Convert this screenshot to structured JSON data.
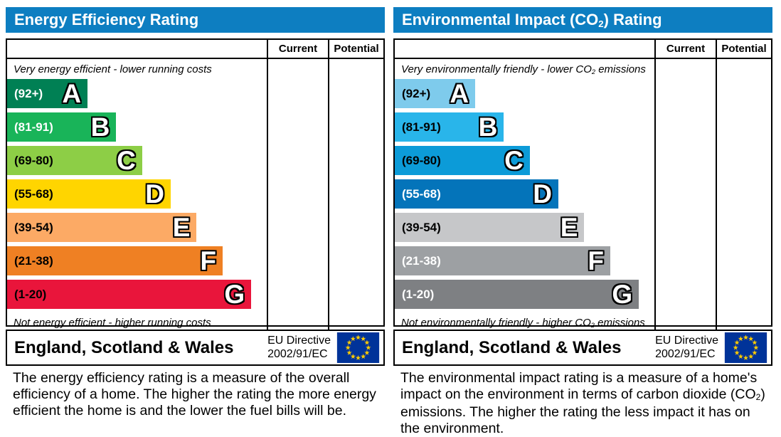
{
  "colors": {
    "header_blue": "#0d7ec1",
    "border": "#000000",
    "flag_blue": "#003399",
    "flag_star": "#ffcc00"
  },
  "left_chart": {
    "title": "Energy Efficiency Rating",
    "columns": {
      "current": "Current",
      "potential": "Potential"
    },
    "top_caption": "Very energy efficient - lower running costs",
    "bottom_caption": "Not energy efficient - higher running costs",
    "bands": [
      {
        "range": "(92+)",
        "letter": "A",
        "color": "#008054",
        "width_pct": 31,
        "label_color": "#ffffff"
      },
      {
        "range": "(81-91)",
        "letter": "B",
        "color": "#19b459",
        "width_pct": 42,
        "label_color": "#ffffff"
      },
      {
        "range": "(69-80)",
        "letter": "C",
        "color": "#8dce46",
        "width_pct": 52,
        "label_color": "#000000"
      },
      {
        "range": "(55-68)",
        "letter": "D",
        "color": "#ffd500",
        "width_pct": 63,
        "label_color": "#000000"
      },
      {
        "range": "(39-54)",
        "letter": "E",
        "color": "#fcaa65",
        "width_pct": 73,
        "label_color": "#000000"
      },
      {
        "range": "(21-38)",
        "letter": "F",
        "color": "#ef8023",
        "width_pct": 83,
        "label_color": "#000000"
      },
      {
        "range": "(1-20)",
        "letter": "G",
        "color": "#e9153b",
        "width_pct": 94,
        "label_color": "#000000"
      }
    ],
    "footer": {
      "region": "England, Scotland & Wales",
      "directive_line1": "EU Directive",
      "directive_line2": "2002/91/EC"
    },
    "description": "The energy efficiency rating is a measure of the overall efficiency of a home. The higher the rating the more energy efficient the home is and the lower the fuel bills will be."
  },
  "right_chart": {
    "title_prefix": "Environmental Impact (CO",
    "title_sub": "2",
    "title_suffix": ") Rating",
    "columns": {
      "current": "Current",
      "potential": "Potential"
    },
    "top_caption_prefix": "Very environmentally friendly - lower CO",
    "top_caption_sub": "2",
    "top_caption_suffix": " emissions",
    "bottom_caption_prefix": "Not environmentally friendly - higher CO",
    "bottom_caption_sub": "2",
    "bottom_caption_suffix": " emissions",
    "bands": [
      {
        "range": "(92+)",
        "letter": "A",
        "color": "#7ecbec",
        "width_pct": 31,
        "label_color": "#000000"
      },
      {
        "range": "(81-91)",
        "letter": "B",
        "color": "#29b5ea",
        "width_pct": 42,
        "label_color": "#000000"
      },
      {
        "range": "(69-80)",
        "letter": "C",
        "color": "#0c9bd8",
        "width_pct": 52,
        "label_color": "#000000"
      },
      {
        "range": "(55-68)",
        "letter": "D",
        "color": "#0474ba",
        "width_pct": 63,
        "label_color": "#ffffff"
      },
      {
        "range": "(39-54)",
        "letter": "E",
        "color": "#c6c7c9",
        "width_pct": 73,
        "label_color": "#000000"
      },
      {
        "range": "(21-38)",
        "letter": "F",
        "color": "#9da0a3",
        "width_pct": 83,
        "label_color": "#ffffff"
      },
      {
        "range": "(1-20)",
        "letter": "G",
        "color": "#7e8083",
        "width_pct": 94,
        "label_color": "#ffffff"
      }
    ],
    "footer": {
      "region": "England, Scotland & Wales",
      "directive_line1": "EU Directive",
      "directive_line2": "2002/91/EC"
    },
    "description_prefix": "The environmental impact rating is a measure of a home's impact on the environment in terms of carbon dioxide (CO",
    "description_sub": "2",
    "description_suffix": ") emissions. The higher the rating the less impact it has on the environment."
  },
  "chart_data": [
    {
      "type": "bar",
      "orientation": "horizontal",
      "title": "Energy Efficiency Rating",
      "categories": [
        "A",
        "B",
        "C",
        "D",
        "E",
        "F",
        "G"
      ],
      "band_ranges": [
        "92+",
        "81-91",
        "69-80",
        "55-68",
        "39-54",
        "21-38",
        "1-20"
      ],
      "relative_widths_pct": [
        31,
        42,
        52,
        63,
        73,
        83,
        94
      ],
      "colors": [
        "#008054",
        "#19b459",
        "#8dce46",
        "#ffd500",
        "#fcaa65",
        "#ef8023",
        "#e9153b"
      ],
      "value_columns": [
        "Current",
        "Potential"
      ],
      "current_value": null,
      "potential_value": null,
      "top_annotation": "Very energy efficient - lower running costs",
      "bottom_annotation": "Not energy efficient - higher running costs",
      "footer": "England, Scotland & Wales — EU Directive 2002/91/EC"
    },
    {
      "type": "bar",
      "orientation": "horizontal",
      "title": "Environmental Impact (CO2) Rating",
      "categories": [
        "A",
        "B",
        "C",
        "D",
        "E",
        "F",
        "G"
      ],
      "band_ranges": [
        "92+",
        "81-91",
        "69-80",
        "55-68",
        "39-54",
        "21-38",
        "1-20"
      ],
      "relative_widths_pct": [
        31,
        42,
        52,
        63,
        73,
        83,
        94
      ],
      "colors": [
        "#7ecbec",
        "#29b5ea",
        "#0c9bd8",
        "#0474ba",
        "#c6c7c9",
        "#9da0a3",
        "#7e8083"
      ],
      "value_columns": [
        "Current",
        "Potential"
      ],
      "current_value": null,
      "potential_value": null,
      "top_annotation": "Very environmentally friendly - lower CO2 emissions",
      "bottom_annotation": "Not environmentally friendly - higher CO2 emissions",
      "footer": "England, Scotland & Wales — EU Directive 2002/91/EC"
    }
  ]
}
